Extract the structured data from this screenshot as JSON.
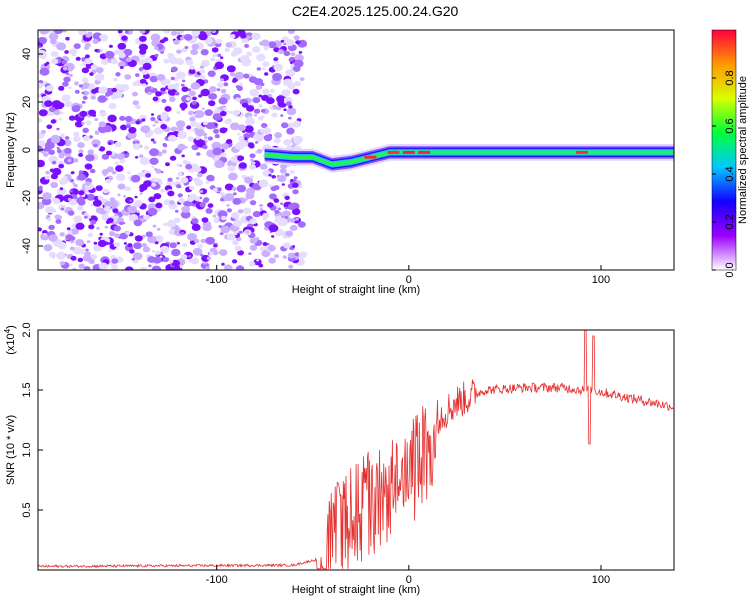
{
  "title": "C2E4.2025.125.00.24.G20",
  "chart_data": [
    {
      "type": "heatmap",
      "xlabel": "Height of straight line (km)",
      "ylabel": "Frequency (Hz)",
      "xlim": [
        -193,
        138
      ],
      "ylim": [
        -50,
        50
      ],
      "x_ticks": [
        -100,
        0,
        100
      ],
      "y_ticks": [
        -40,
        -20,
        0,
        20,
        40
      ],
      "colorbar": {
        "label": "Normalized spectral amplitude",
        "range": [
          0,
          1
        ],
        "ticks": [
          "0.0",
          "0.2",
          "0.4",
          "0.6",
          "0.8"
        ],
        "colors": [
          "#ffffff",
          "#9a00ff",
          "#1400ff",
          "#00c8ff",
          "#00ff3a",
          "#d8ff00",
          "#ff9800",
          "#ff0040"
        ]
      },
      "noise_region_end_km": -55,
      "ridge": [
        {
          "x": -75,
          "y": -2
        },
        {
          "x": -60,
          "y": -3
        },
        {
          "x": -50,
          "y": -3
        },
        {
          "x": -40,
          "y": -6
        },
        {
          "x": -30,
          "y": -5
        },
        {
          "x": -20,
          "y": -3
        },
        {
          "x": -10,
          "y": -1
        },
        {
          "x": 0,
          "y": -1
        },
        {
          "x": 10,
          "y": -1
        },
        {
          "x": 30,
          "y": -1
        },
        {
          "x": 60,
          "y": -1
        },
        {
          "x": 90,
          "y": -1
        },
        {
          "x": 120,
          "y": -1
        },
        {
          "x": 138,
          "y": -1
        }
      ]
    },
    {
      "type": "line",
      "xlabel": "Height of straight line (km)",
      "ylabel": "SNR (10 * v/v)",
      "multiplier_label": "(x10",
      "multiplier_exp": "4",
      "xlim": [
        -193,
        138
      ],
      "ylim": [
        0,
        2.0
      ],
      "x_ticks": [
        -100,
        0,
        100
      ],
      "y_ticks": [
        "0.5",
        "1.0",
        "1.5",
        "2.0"
      ],
      "color": "#e53030",
      "envelope": [
        {
          "x": -193,
          "y": 0.03
        },
        {
          "x": -60,
          "y": 0.04
        },
        {
          "x": -45,
          "y": 0.1
        },
        {
          "x": -38,
          "y": 0.6
        },
        {
          "x": -25,
          "y": 0.75
        },
        {
          "x": -15,
          "y": 0.8
        },
        {
          "x": -5,
          "y": 1.0
        },
        {
          "x": 10,
          "y": 1.2
        },
        {
          "x": 25,
          "y": 1.4
        },
        {
          "x": 40,
          "y": 1.5
        },
        {
          "x": 60,
          "y": 1.52
        },
        {
          "x": 80,
          "y": 1.52
        },
        {
          "x": 90,
          "y": 1.5
        },
        {
          "x": 95,
          "y": 1.5
        },
        {
          "x": 110,
          "y": 1.45
        },
        {
          "x": 125,
          "y": 1.4
        },
        {
          "x": 138,
          "y": 1.36
        }
      ],
      "spikes": [
        {
          "x": 92,
          "y": 2.0
        },
        {
          "x": 94,
          "y": 1.05
        },
        {
          "x": 96,
          "y": 1.95
        }
      ]
    }
  ]
}
